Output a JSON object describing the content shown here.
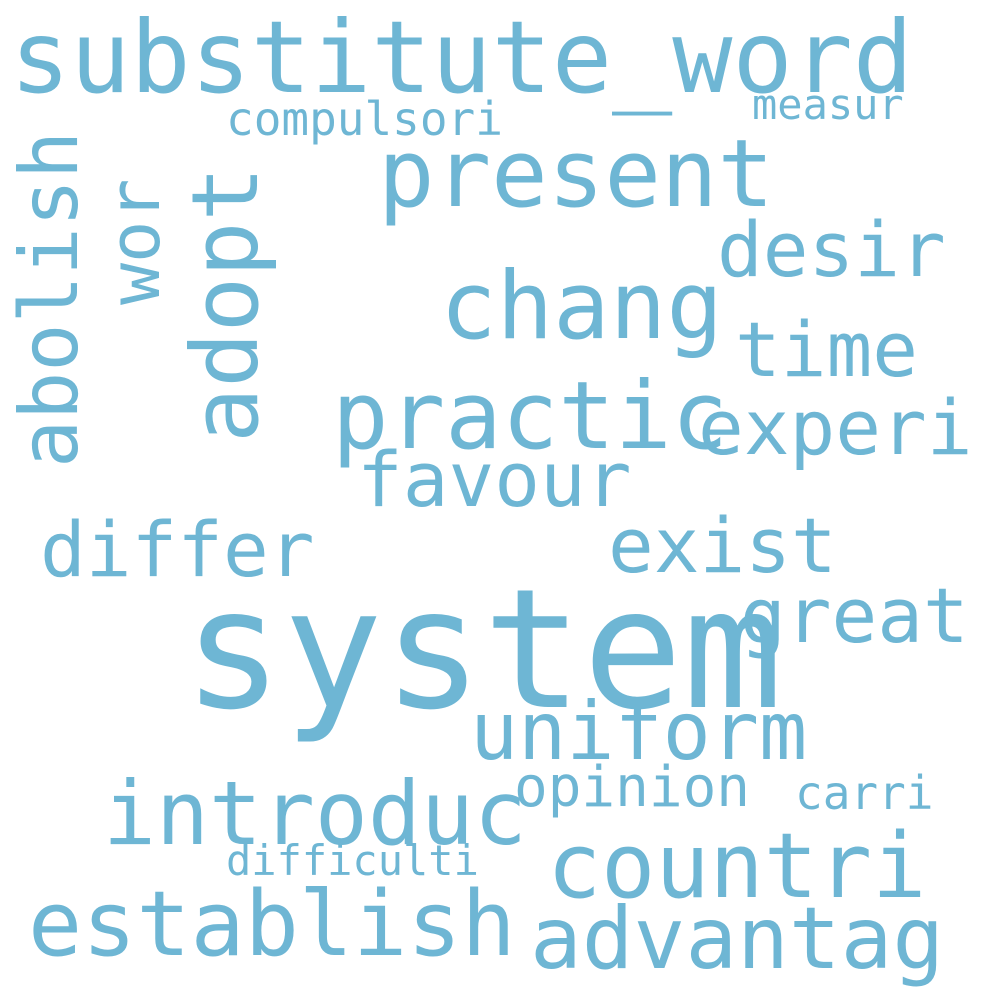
{
  "word_color": "#6eb6d4",
  "background_color": "#ffffff",
  "words": {
    "system": "system",
    "substitute_word": "substitute_word",
    "present": "present",
    "adopt": "adopt",
    "abolish": "abolish",
    "wor": "wor",
    "compulsori": "compulsori",
    "measur": "measur",
    "desir": "desir",
    "chang": "chang",
    "time": "time",
    "practic": "practic",
    "experi": "experi",
    "favour": "favour",
    "differ": "differ",
    "exist": "exist",
    "great": "great",
    "uniform": "uniform",
    "introduc": "introduc",
    "opinion": "opinion",
    "carri": "carri",
    "countri": "countri",
    "difficulti": "difficulti",
    "establish": "establish",
    "advantag": "advantag"
  }
}
